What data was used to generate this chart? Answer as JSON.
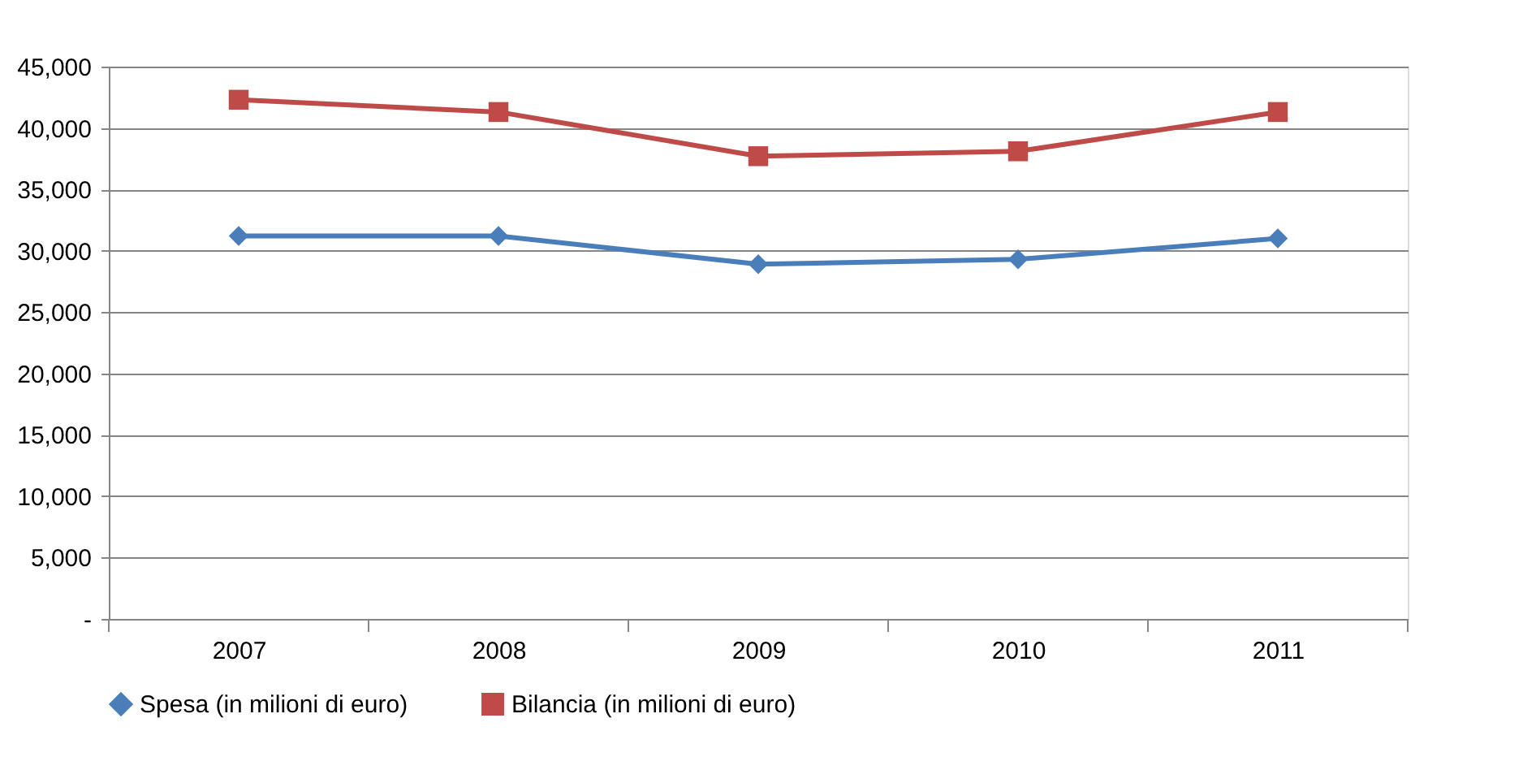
{
  "chart_data": {
    "type": "line",
    "categories": [
      "2007",
      "2008",
      "2009",
      "2010",
      "2011"
    ],
    "series": [
      {
        "name": "Spesa (in milioni di euro)",
        "color": "#4a7ebb",
        "marker": "diamond",
        "values": [
          31200,
          31200,
          28900,
          29300,
          31000
        ]
      },
      {
        "name": "Bilancia (in milioni di euro)",
        "color": "#be4b48",
        "marker": "square",
        "values": [
          42300,
          41300,
          37700,
          38100,
          41300
        ]
      }
    ],
    "ylim": [
      0,
      45000
    ],
    "yticks": [
      {
        "value": 0,
        "label": "-"
      },
      {
        "value": 5000,
        "label": "5,000"
      },
      {
        "value": 10000,
        "label": "10,000"
      },
      {
        "value": 15000,
        "label": "15,000"
      },
      {
        "value": 20000,
        "label": "20,000"
      },
      {
        "value": 25000,
        "label": "25,000"
      },
      {
        "value": 30000,
        "label": "30,000"
      },
      {
        "value": 35000,
        "label": "35,000"
      },
      {
        "value": 40000,
        "label": "40,000"
      },
      {
        "value": 45000,
        "label": "45,000"
      }
    ],
    "grid": "y",
    "legend": "bottom",
    "line_style": "solid"
  }
}
